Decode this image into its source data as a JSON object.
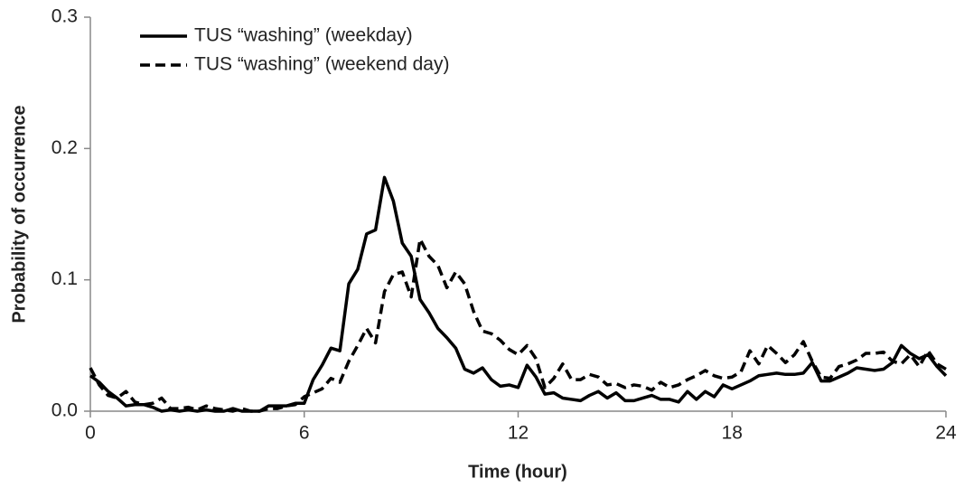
{
  "chart_data": {
    "type": "line",
    "x_label": "Time (hour)",
    "y_label": "Probability of occurrence",
    "x": [
      0,
      0.25,
      0.5,
      0.75,
      1,
      1.25,
      1.5,
      1.75,
      2,
      2.25,
      2.5,
      2.75,
      3,
      3.25,
      3.5,
      3.75,
      4,
      4.25,
      4.5,
      4.75,
      5,
      5.25,
      5.5,
      5.75,
      6,
      6.25,
      6.5,
      6.75,
      7,
      7.25,
      7.5,
      7.75,
      8,
      8.25,
      8.5,
      8.75,
      9,
      9.25,
      9.5,
      9.75,
      10,
      10.25,
      10.5,
      10.75,
      11,
      11.25,
      11.5,
      11.75,
      12,
      12.25,
      12.5,
      12.75,
      13,
      13.25,
      13.5,
      13.75,
      14,
      14.25,
      14.5,
      14.75,
      15,
      15.25,
      15.5,
      15.75,
      16,
      16.25,
      16.5,
      16.75,
      17,
      17.25,
      17.5,
      17.75,
      18,
      18.25,
      18.5,
      18.75,
      19,
      19.25,
      19.5,
      19.75,
      20,
      20.25,
      20.5,
      20.75,
      21,
      21.25,
      21.5,
      21.75,
      22,
      22.25,
      22.5,
      22.75,
      23,
      23.25,
      23.5,
      23.75,
      24
    ],
    "series": [
      {
        "name": "TUS “washing” (weekday)",
        "color": "#000000",
        "line_style": "solid",
        "values": [
          0.027,
          0.022,
          0.015,
          0.01,
          0.004,
          0.005,
          0.005,
          0.003,
          0.0,
          0.001,
          0.0,
          0.001,
          0.0,
          0.001,
          0.0,
          0.0,
          0.002,
          0.0,
          0.0,
          0.0,
          0.004,
          0.004,
          0.004,
          0.006,
          0.006,
          0.024,
          0.035,
          0.048,
          0.046,
          0.097,
          0.108,
          0.135,
          0.138,
          0.178,
          0.16,
          0.128,
          0.118,
          0.085,
          0.075,
          0.063,
          0.056,
          0.048,
          0.032,
          0.029,
          0.033,
          0.024,
          0.019,
          0.02,
          0.018,
          0.035,
          0.026,
          0.013,
          0.014,
          0.01,
          0.009,
          0.008,
          0.012,
          0.015,
          0.01,
          0.014,
          0.008,
          0.008,
          0.01,
          0.012,
          0.009,
          0.009,
          0.007,
          0.015,
          0.009,
          0.015,
          0.011,
          0.02,
          0.017,
          0.02,
          0.023,
          0.027,
          0.028,
          0.029,
          0.028,
          0.028,
          0.029,
          0.037,
          0.023,
          0.023,
          0.026,
          0.029,
          0.033,
          0.032,
          0.031,
          0.032,
          0.037,
          0.05,
          0.044,
          0.04,
          0.043,
          0.034,
          0.027
        ]
      },
      {
        "name": "TUS “washing” (weekend day)",
        "color": "#000000",
        "line_style": "dashed",
        "values": [
          0.033,
          0.02,
          0.012,
          0.01,
          0.015,
          0.007,
          0.005,
          0.006,
          0.01,
          0.002,
          0.002,
          0.003,
          0.001,
          0.004,
          0.002,
          0.001,
          0.0,
          0.002,
          0.0,
          0.0,
          0.002,
          0.002,
          0.004,
          0.005,
          0.011,
          0.014,
          0.017,
          0.025,
          0.022,
          0.038,
          0.05,
          0.063,
          0.052,
          0.091,
          0.104,
          0.106,
          0.087,
          0.131,
          0.118,
          0.111,
          0.094,
          0.106,
          0.097,
          0.076,
          0.061,
          0.059,
          0.054,
          0.047,
          0.043,
          0.05,
          0.04,
          0.018,
          0.025,
          0.036,
          0.024,
          0.024,
          0.028,
          0.026,
          0.02,
          0.021,
          0.018,
          0.02,
          0.019,
          0.016,
          0.022,
          0.018,
          0.02,
          0.024,
          0.027,
          0.031,
          0.027,
          0.025,
          0.026,
          0.03,
          0.046,
          0.036,
          0.05,
          0.044,
          0.037,
          0.043,
          0.053,
          0.038,
          0.026,
          0.025,
          0.034,
          0.036,
          0.039,
          0.044,
          0.044,
          0.045,
          0.038,
          0.036,
          0.043,
          0.034,
          0.046,
          0.036,
          0.032
        ]
      }
    ],
    "xlim": [
      0,
      24
    ],
    "xticks": [
      0,
      6,
      12,
      18,
      24
    ],
    "ylim": [
      0,
      0.3
    ],
    "yticks": [
      {
        "value": 0,
        "label": "0.0"
      },
      0.1,
      0.2,
      0.3
    ],
    "grid": false,
    "legend": "top-left"
  }
}
